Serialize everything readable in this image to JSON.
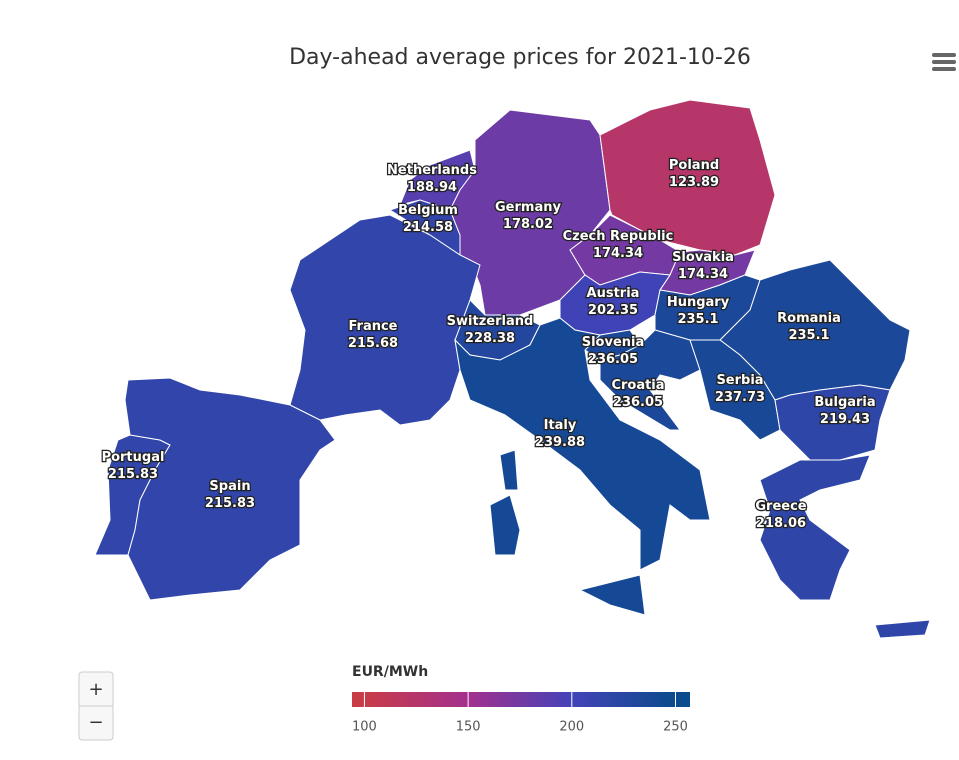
{
  "chart_data": {
    "type": "choropleth",
    "title": "Day-ahead average prices for 2021-10-26",
    "regions": [
      {
        "name": "Netherlands",
        "value": 188.94
      },
      {
        "name": "Belgium",
        "value": 214.58
      },
      {
        "name": "Germany",
        "value": 178.02
      },
      {
        "name": "Poland",
        "value": 123.89
      },
      {
        "name": "Czech Republic",
        "value": 174.34
      },
      {
        "name": "Slovakia",
        "value": 174.34
      },
      {
        "name": "Austria",
        "value": 202.35
      },
      {
        "name": "Hungary",
        "value": 235.1
      },
      {
        "name": "Romania",
        "value": 235.1
      },
      {
        "name": "Switzerland",
        "value": 228.38
      },
      {
        "name": "France",
        "value": 215.68
      },
      {
        "name": "Slovenia",
        "value": 236.05
      },
      {
        "name": "Croatia",
        "value": 236.05
      },
      {
        "name": "Serbia",
        "value": 237.73
      },
      {
        "name": "Bulgaria",
        "value": 219.43
      },
      {
        "name": "Italy",
        "value": 239.88
      },
      {
        "name": "Portugal",
        "value": 215.83
      },
      {
        "name": "Spain",
        "value": 215.83
      },
      {
        "name": "Greece",
        "value": 218.06
      }
    ],
    "colorbar_title": "EUR/MWh",
    "clim": [
      94,
      257
    ],
    "cticks": [
      100,
      150,
      200,
      250
    ],
    "colorscale": [
      [
        100,
        "#c83c48"
      ],
      [
        150,
        "#a3308e"
      ],
      [
        200,
        "#4343b8"
      ],
      [
        250,
        "#0b4a8c"
      ]
    ]
  },
  "controls": {
    "zoom_in": "+",
    "zoom_out": "−"
  }
}
